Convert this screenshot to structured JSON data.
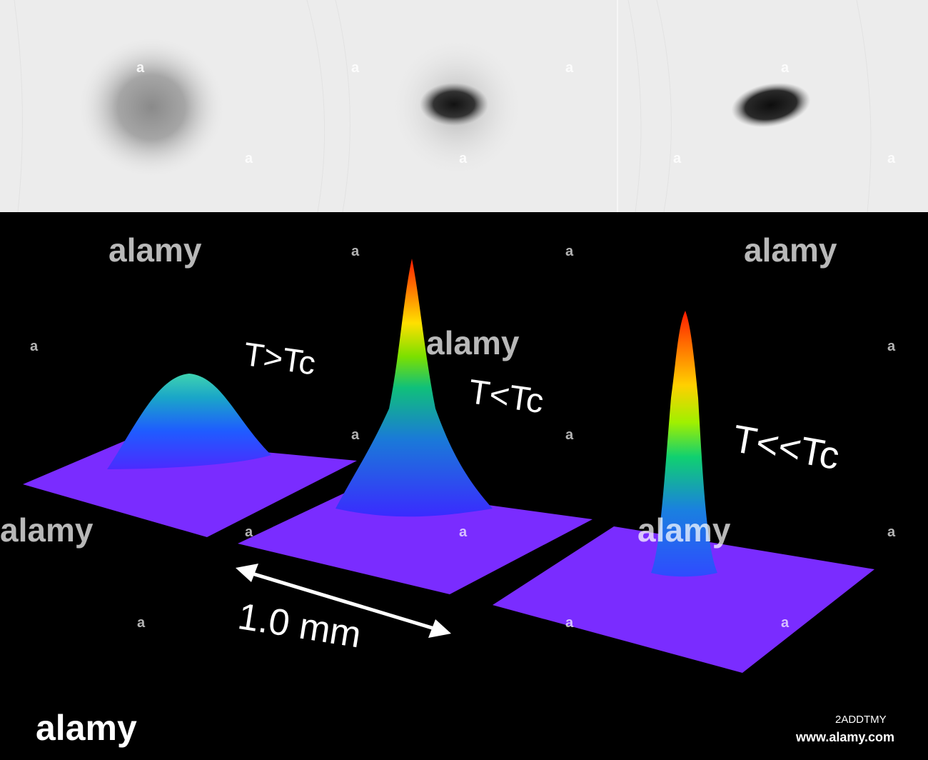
{
  "panels": {
    "top": {
      "background": "#ececec"
    },
    "bottom": {
      "background": "#000000"
    }
  },
  "labels": {
    "t_above": "T>Tc",
    "t_below": "T<Tc",
    "t_far_below": "T<<Tc",
    "scale": "1.0 mm"
  },
  "watermark": {
    "brand": "alamy",
    "mark": "a",
    "image_id": "2ADDTMY",
    "site": "www.alamy.com"
  },
  "colors": {
    "base": "#7a2cff",
    "peak_low": "#1e5bff",
    "peak_mid": "#00e0a0",
    "peak_high": "#ff2a00"
  }
}
